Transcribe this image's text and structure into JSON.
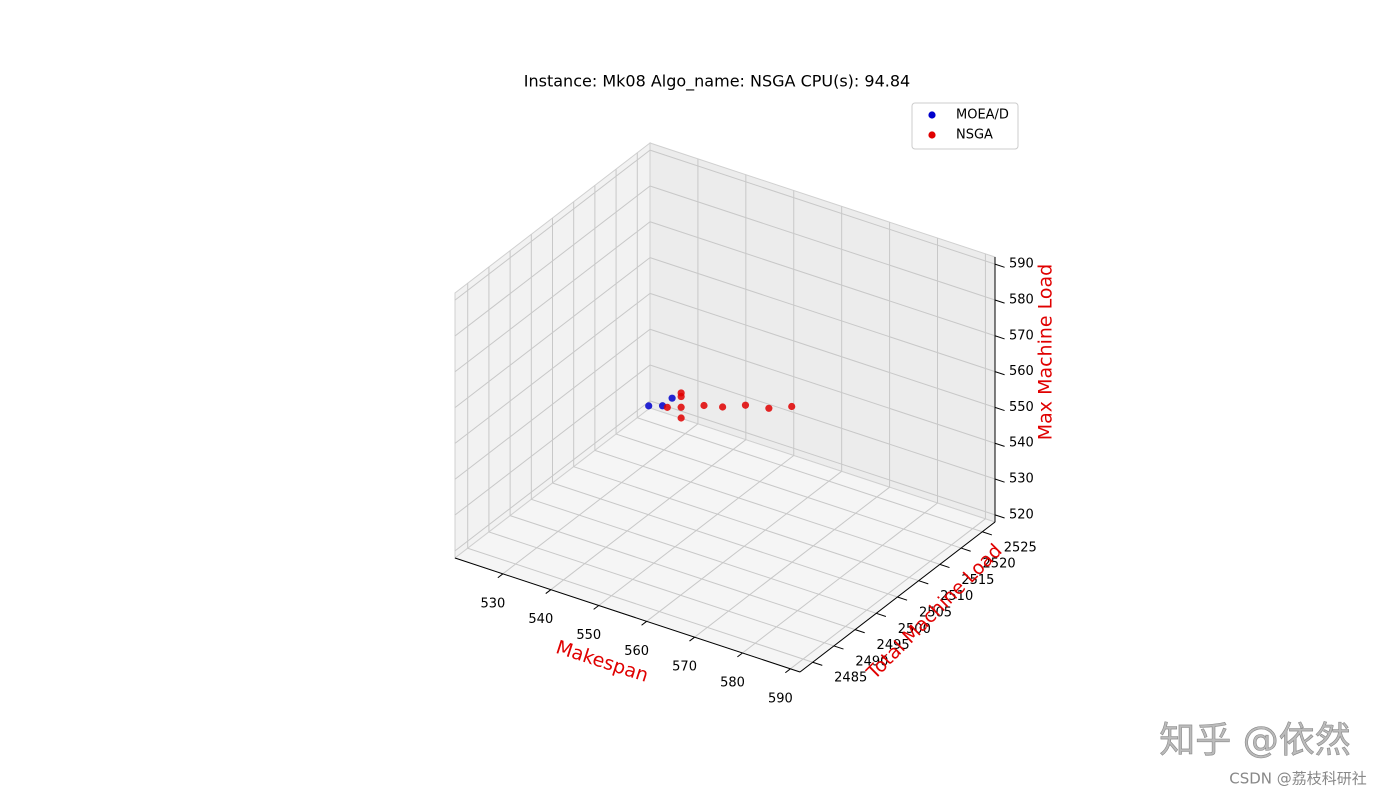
{
  "chart_data": {
    "type": "scatter3d",
    "title": "Instance: Mk08 Algo_name: NSGA CPU(s): 94.84",
    "xlabel": "Makespan",
    "ylabel": "Total Machine Load",
    "zlabel": "Max Machine Load",
    "axis_label_color": "#e00000",
    "xlim": [
      520,
      592
    ],
    "ylim": [
      2482,
      2528
    ],
    "zlim": [
      518,
      592
    ],
    "xticks": [
      530,
      540,
      550,
      560,
      570,
      580,
      590
    ],
    "yticks": [
      2485,
      2490,
      2495,
      2500,
      2505,
      2510,
      2515,
      2520,
      2525
    ],
    "zticks": [
      520,
      530,
      540,
      550,
      560,
      570,
      580,
      590
    ],
    "grid": true,
    "legend": "upper right",
    "series": [
      {
        "name": "MOEA/D",
        "color": "#0000cc",
        "x": [
          535,
          533,
          537
        ],
        "y": [
          2514,
          2513,
          2514
        ],
        "z": [
          538,
          538,
          541
        ]
      },
      {
        "name": "NSGA",
        "color": "#e00000",
        "x": [
          536,
          538,
          541,
          544,
          547,
          551,
          554,
          538,
          538,
          538
        ],
        "y": [
          2514,
          2515,
          2517,
          2518,
          2520,
          2521,
          2523,
          2515,
          2515,
          2515
        ],
        "z": [
          538,
          538,
          538,
          538,
          538,
          538,
          538,
          542,
          541,
          535
        ]
      }
    ]
  },
  "watermark": {
    "site": "知乎 @依然",
    "source": "CSDN @荔枝科研社"
  }
}
